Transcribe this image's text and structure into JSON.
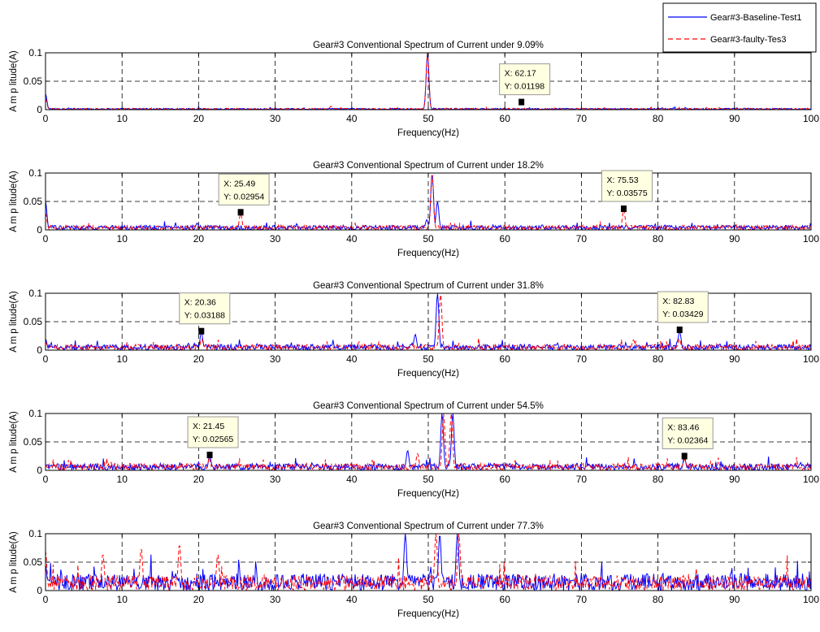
{
  "legend": {
    "position": "top-right",
    "entries": [
      {
        "label": "Gear#3-Baseline-Test1",
        "color": "#0000ff",
        "style": "solid"
      },
      {
        "label": "Gear#3-faulty-Tes3",
        "color": "#ff0000",
        "style": "dashed"
      }
    ]
  },
  "chart_data": [
    {
      "type": "line",
      "title": "Gear#3 Conventional Spectrum of Current under 9.09%",
      "xlabel": "Frequency(Hz)",
      "ylabel": "A m p litude(A)",
      "xlim": [
        0,
        100
      ],
      "ylim": [
        0,
        0.1
      ],
      "xticks": [
        0,
        10,
        20,
        30,
        40,
        50,
        60,
        70,
        80,
        90,
        100
      ],
      "yticks": [
        0,
        0.05,
        0.1
      ],
      "grid": true,
      "series": [
        {
          "name": "Gear#3-Baseline-Test1",
          "peaks": [
            {
              "x": 0,
              "y": 0.028
            },
            {
              "x": 49.9,
              "y": 0.1
            }
          ]
        },
        {
          "name": "Gear#3-faulty-Tes3",
          "peaks": [
            {
              "x": 0,
              "y": 0.02
            },
            {
              "x": 49.9,
              "y": 0.1
            },
            {
              "x": 37.3,
              "y": 0.006
            }
          ]
        }
      ],
      "datatips": [
        {
          "x_text": "X: 62.17",
          "y_text": "Y: 0.01198",
          "x": 62.17,
          "y": 0.01198
        }
      ]
    },
    {
      "type": "line",
      "title": "Gear#3 Conventional Spectrum of Current under 18.2%",
      "xlabel": "Frequency(Hz)",
      "ylabel": "A m p litude(A)",
      "xlim": [
        0,
        100
      ],
      "ylim": [
        0,
        0.1
      ],
      "xticks": [
        0,
        10,
        20,
        30,
        40,
        50,
        60,
        70,
        80,
        90,
        100
      ],
      "yticks": [
        0,
        0.05,
        0.1
      ],
      "grid": true,
      "series": [
        {
          "name": "Gear#3-Baseline-Test1",
          "peaks": [
            {
              "x": 0,
              "y": 0.05
            },
            {
              "x": 19.8,
              "y": 0.012
            },
            {
              "x": 49.8,
              "y": 0.018
            },
            {
              "x": 50.5,
              "y": 0.1
            },
            {
              "x": 51.2,
              "y": 0.05
            },
            {
              "x": 81.5,
              "y": 0.008
            }
          ]
        },
        {
          "name": "Gear#3-faulty-Tes3",
          "peaks": [
            {
              "x": 0,
              "y": 0.03
            },
            {
              "x": 25.49,
              "y": 0.02954
            },
            {
              "x": 50.5,
              "y": 0.1
            },
            {
              "x": 75.53,
              "y": 0.03575
            }
          ]
        }
      ],
      "datatips": [
        {
          "x_text": "X: 25.49",
          "y_text": "Y: 0.02954",
          "x": 25.49,
          "y": 0.02954
        },
        {
          "x_text": "X: 75.53",
          "y_text": "Y: 0.03575",
          "x": 75.53,
          "y": 0.03575
        }
      ]
    },
    {
      "type": "line",
      "title": "Gear#3 Conventional Spectrum of Current under 31.8%",
      "xlabel": "Frequency(Hz)",
      "ylabel": "A m p litude(A)",
      "xlim": [
        0,
        100
      ],
      "ylim": [
        0,
        0.1
      ],
      "xticks": [
        0,
        10,
        20,
        30,
        40,
        50,
        60,
        70,
        80,
        90,
        100
      ],
      "yticks": [
        0,
        0.05,
        0.1
      ],
      "grid": true,
      "series": [
        {
          "name": "Gear#3-Baseline-Test1",
          "peaks": [
            {
              "x": 0,
              "y": 0.02
            },
            {
              "x": 20.36,
              "y": 0.03188
            },
            {
              "x": 48.3,
              "y": 0.028
            },
            {
              "x": 51.2,
              "y": 0.1
            },
            {
              "x": 82.83,
              "y": 0.03429
            }
          ]
        },
        {
          "name": "Gear#3-faulty-Tes3",
          "peaks": [
            {
              "x": 0,
              "y": 0.015
            },
            {
              "x": 20.4,
              "y": 0.02
            },
            {
              "x": 51.6,
              "y": 0.1
            },
            {
              "x": 76.8,
              "y": 0.018
            },
            {
              "x": 82.8,
              "y": 0.02
            }
          ]
        }
      ],
      "datatips": [
        {
          "x_text": "X: 20.36",
          "y_text": "Y: 0.03188",
          "x": 20.36,
          "y": 0.03188
        },
        {
          "x_text": "X: 82.83",
          "y_text": "Y: 0.03429",
          "x": 82.83,
          "y": 0.03429
        }
      ]
    },
    {
      "type": "line",
      "title": "Gear#3 Conventional Spectrum of Current under 54.5%",
      "xlabel": "Frequency(Hz)",
      "ylabel": "A m p litude(A)",
      "xlim": [
        0,
        100
      ],
      "ylim": [
        0,
        0.1
      ],
      "xticks": [
        0,
        10,
        20,
        30,
        40,
        50,
        60,
        70,
        80,
        90,
        100
      ],
      "yticks": [
        0,
        0.05,
        0.1
      ],
      "grid": true,
      "series": [
        {
          "name": "Gear#3-Baseline-Test1",
          "peaks": [
            {
              "x": 21.45,
              "y": 0.02565
            },
            {
              "x": 47.3,
              "y": 0.035
            },
            {
              "x": 51.8,
              "y": 0.1
            },
            {
              "x": 53.2,
              "y": 0.1
            },
            {
              "x": 83.46,
              "y": 0.02364
            }
          ]
        },
        {
          "name": "Gear#3-faulty-Tes3",
          "peaks": [
            {
              "x": 21.4,
              "y": 0.02
            },
            {
              "x": 48.6,
              "y": 0.03
            },
            {
              "x": 52.0,
              "y": 0.1
            },
            {
              "x": 53.0,
              "y": 0.1
            },
            {
              "x": 83.5,
              "y": 0.02
            }
          ]
        }
      ],
      "datatips": [
        {
          "x_text": "X: 21.45",
          "y_text": "Y: 0.02565",
          "x": 21.45,
          "y": 0.02565
        },
        {
          "x_text": "X: 83.46",
          "y_text": "Y: 0.02364",
          "x": 83.46,
          "y": 0.02364
        }
      ]
    },
    {
      "type": "line",
      "title": "Gear#3 Conventional Spectrum of Current under 77.3%",
      "xlabel": "Frequency(Hz)",
      "ylabel": "A m p litude(A)",
      "xlim": [
        0,
        100
      ],
      "ylim": [
        0,
        0.1
      ],
      "xticks": [
        0,
        10,
        20,
        30,
        40,
        50,
        60,
        70,
        80,
        90,
        100
      ],
      "yticks": [
        0,
        0.05,
        0.1
      ],
      "grid": true,
      "series": [
        {
          "name": "Gear#3-Baseline-Test1",
          "peaks": [
            {
              "x": 0,
              "y": 0.045
            },
            {
              "x": 47.0,
              "y": 0.1
            },
            {
              "x": 51.5,
              "y": 0.1
            },
            {
              "x": 53.8,
              "y": 0.1
            }
          ]
        },
        {
          "name": "Gear#3-faulty-Tes3",
          "peaks": [
            {
              "x": 0,
              "y": 0.07
            },
            {
              "x": 7.5,
              "y": 0.065
            },
            {
              "x": 12.5,
              "y": 0.075
            },
            {
              "x": 17.5,
              "y": 0.082
            },
            {
              "x": 22.5,
              "y": 0.065
            },
            {
              "x": 51.0,
              "y": 0.1
            },
            {
              "x": 54.0,
              "y": 0.1
            }
          ]
        }
      ],
      "datatips": []
    }
  ]
}
